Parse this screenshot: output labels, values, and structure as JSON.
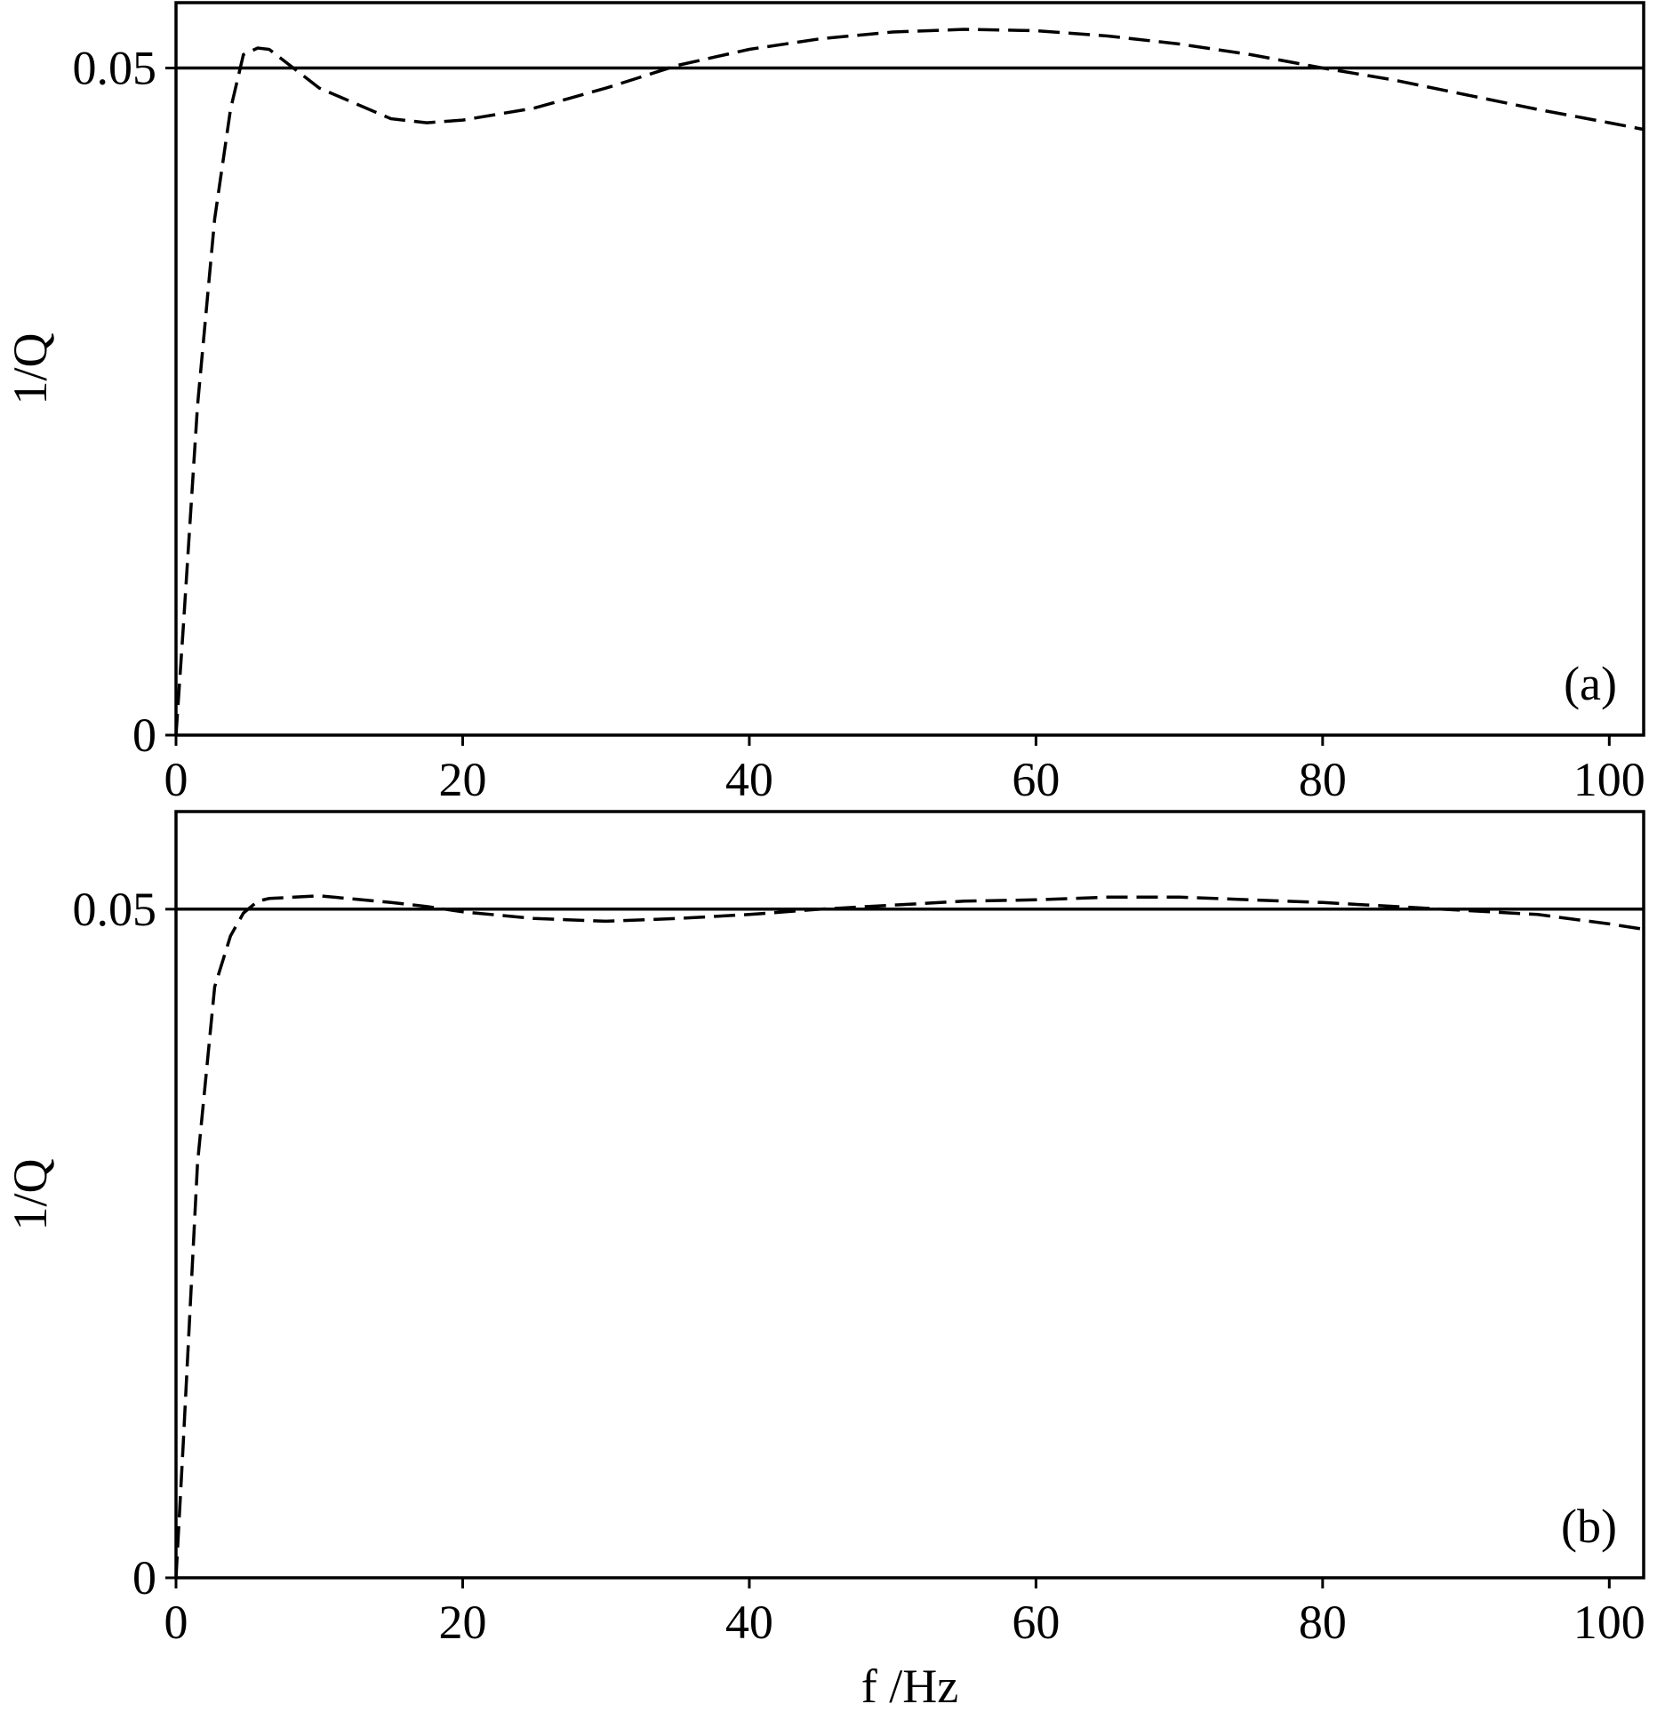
{
  "chart_data": [
    {
      "type": "line",
      "label": "(a)",
      "ylabel": "1/Q",
      "x": [
        0,
        0.5,
        1.5,
        2.7,
        3.8,
        4.7,
        5.7,
        6.5,
        10,
        15,
        17.5,
        20,
        25,
        30,
        35,
        40,
        45,
        50,
        55,
        60,
        65,
        70,
        75,
        80,
        85,
        90,
        95,
        100,
        102.4
      ],
      "series": [
        {
          "color": "#000000",
          "dash": true,
          "values": [
            0,
            0.008,
            0.0247,
            0.0387,
            0.0469,
            0.051,
            0.0515,
            0.0514,
            0.0485,
            0.0462,
            0.0459,
            0.0461,
            0.047,
            0.0485,
            0.0502,
            0.0514,
            0.0522,
            0.0527,
            0.0529,
            0.0528,
            0.0524,
            0.0518,
            0.051,
            0.05,
            0.0491,
            0.048,
            0.0469,
            0.0459,
            0.0454
          ]
        },
        {
          "color": "#000000",
          "dash": false,
          "values": [
            0.05,
            0.05,
            0.05,
            0.05,
            0.05,
            0.05,
            0.05,
            0.05,
            0.05,
            0.05,
            0.05,
            0.05,
            0.05,
            0.05,
            0.05,
            0.05,
            0.05,
            0.05,
            0.05,
            0.05,
            0.05,
            0.05,
            0.05,
            0.05,
            0.05,
            0.05,
            0.05,
            0.05,
            0.05
          ]
        }
      ],
      "xlim": [
        0,
        102.4
      ],
      "ylim": [
        0,
        0.0549
      ],
      "xticks": [
        0,
        20,
        40,
        60,
        80,
        100
      ],
      "yticks": [
        0,
        0.05
      ]
    },
    {
      "type": "line",
      "label": "(b)",
      "ylabel": "1/Q",
      "xlabel": "f /Hz",
      "x": [
        0,
        0.5,
        1.5,
        2.7,
        3.8,
        4.7,
        5.7,
        6.5,
        10,
        15,
        17.5,
        20,
        25,
        30,
        35,
        40,
        45,
        50,
        55,
        60,
        65,
        70,
        75,
        80,
        85,
        90,
        95,
        100,
        102.4
      ],
      "series": [
        {
          "color": "#000000",
          "dash": true,
          "values": [
            0,
            0.01,
            0.031,
            0.0442,
            0.048,
            0.0497,
            0.0506,
            0.0508,
            0.051,
            0.0505,
            0.0502,
            0.0498,
            0.0493,
            0.0491,
            0.0493,
            0.0496,
            0.05,
            0.0503,
            0.0506,
            0.0507,
            0.0509,
            0.0509,
            0.0507,
            0.0505,
            0.0502,
            0.0499,
            0.0496,
            0.0489,
            0.0485
          ]
        },
        {
          "color": "#000000",
          "dash": false,
          "values": [
            0.05,
            0.05,
            0.05,
            0.05,
            0.05,
            0.05,
            0.05,
            0.05,
            0.05,
            0.05,
            0.05,
            0.05,
            0.05,
            0.05,
            0.05,
            0.05,
            0.05,
            0.05,
            0.05,
            0.05,
            0.05,
            0.05,
            0.05,
            0.05,
            0.05,
            0.05,
            0.05,
            0.05,
            0.05
          ]
        }
      ],
      "xlim": [
        0,
        102.4
      ],
      "ylim": [
        0,
        0.0573
      ],
      "xticks": [
        0,
        20,
        40,
        60,
        80,
        100
      ],
      "yticks": [
        0,
        0.05
      ]
    }
  ]
}
